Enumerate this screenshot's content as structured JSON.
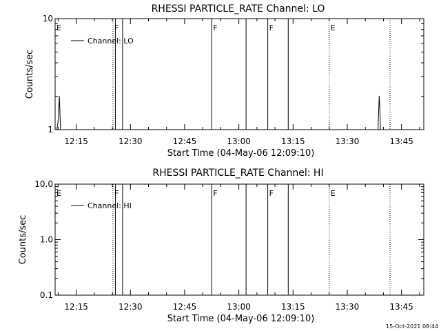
{
  "chart_data": [
    {
      "type": "line",
      "title": "RHESSI PARTICLE_RATE Channel: LO",
      "xlabel": "Start Time (04-May-06 12:09:10)",
      "ylabel": "Counts/sec",
      "y_scale": "log",
      "ylim": [
        1,
        10
      ],
      "xlim": [
        "12:09:10",
        "13:51:10"
      ],
      "x_ticks": [
        "12:15",
        "12:30",
        "12:45",
        "13:00",
        "13:15",
        "13:30",
        "13:45"
      ],
      "y_ticks": [
        "1",
        "10"
      ],
      "legend": {
        "label": "Channel: LO",
        "placement": "top-left"
      },
      "series": [
        {
          "name": "Channel: LO",
          "points": [
            {
              "x": "12:09:40",
              "y": 1
            },
            {
              "x": "12:10:00",
              "y": 1.2
            },
            {
              "x": "12:10:10",
              "y": 1.5
            },
            {
              "x": "12:10:20",
              "y": 2.0
            },
            {
              "x": "12:10:40",
              "y": 1
            },
            {
              "x": "13:38:30",
              "y": 1
            },
            {
              "x": "13:38:40",
              "y": 1.4
            },
            {
              "x": "13:38:50",
              "y": 2.0
            },
            {
              "x": "13:39:00",
              "y": 1.6
            },
            {
              "x": "13:39:10",
              "y": 1
            }
          ]
        }
      ],
      "event_lines": [
        {
          "time": "12:09:10",
          "label": "E",
          "style": "solid"
        },
        {
          "time": "12:25:10",
          "label": "F",
          "style": "dotted"
        },
        {
          "time": "12:25:50",
          "label": "",
          "style": "solid"
        },
        {
          "time": "12:27:50",
          "label": "",
          "style": "solid"
        },
        {
          "time": "12:52:30",
          "label": "F",
          "style": "solid"
        },
        {
          "time": "13:02:00",
          "label": "",
          "style": "solid"
        },
        {
          "time": "13:08:00",
          "label": "F",
          "style": "solid"
        },
        {
          "time": "13:13:40",
          "label": "",
          "style": "solid"
        },
        {
          "time": "13:25:00",
          "label": "E",
          "style": "dotted"
        },
        {
          "time": "13:41:50",
          "label": "",
          "style": "dotted"
        }
      ]
    },
    {
      "type": "line",
      "title": "RHESSI PARTICLE_RATE Channel: HI",
      "xlabel": "Start Time (04-May-06 12:09:10)",
      "ylabel": "Counts/sec",
      "y_scale": "log",
      "ylim": [
        0.1,
        10
      ],
      "xlim": [
        "12:09:10",
        "13:51:10"
      ],
      "x_ticks": [
        "12:15",
        "12:30",
        "12:45",
        "13:00",
        "13:15",
        "13:30",
        "13:45"
      ],
      "y_ticks": [
        "0.1",
        "1.0",
        "10.0"
      ],
      "legend": {
        "label": "Channel: HI",
        "placement": "top-left"
      },
      "series": [
        {
          "name": "Channel: HI",
          "points": []
        }
      ],
      "event_lines": [
        {
          "time": "12:09:10",
          "label": "E",
          "style": "solid"
        },
        {
          "time": "12:25:10",
          "label": "F",
          "style": "dotted"
        },
        {
          "time": "12:25:50",
          "label": "",
          "style": "solid"
        },
        {
          "time": "12:27:50",
          "label": "",
          "style": "solid"
        },
        {
          "time": "12:52:30",
          "label": "F",
          "style": "solid"
        },
        {
          "time": "13:02:00",
          "label": "",
          "style": "solid"
        },
        {
          "time": "13:08:00",
          "label": "F",
          "style": "solid"
        },
        {
          "time": "13:13:40",
          "label": "",
          "style": "solid"
        },
        {
          "time": "13:25:00",
          "label": "E",
          "style": "dotted"
        },
        {
          "time": "13:41:50",
          "label": "",
          "style": "dotted"
        }
      ]
    }
  ],
  "footer": {
    "timestamp": "15-Oct-2021 08:44"
  },
  "colors": {
    "background": "#ffffff",
    "foreground": "#000000"
  }
}
